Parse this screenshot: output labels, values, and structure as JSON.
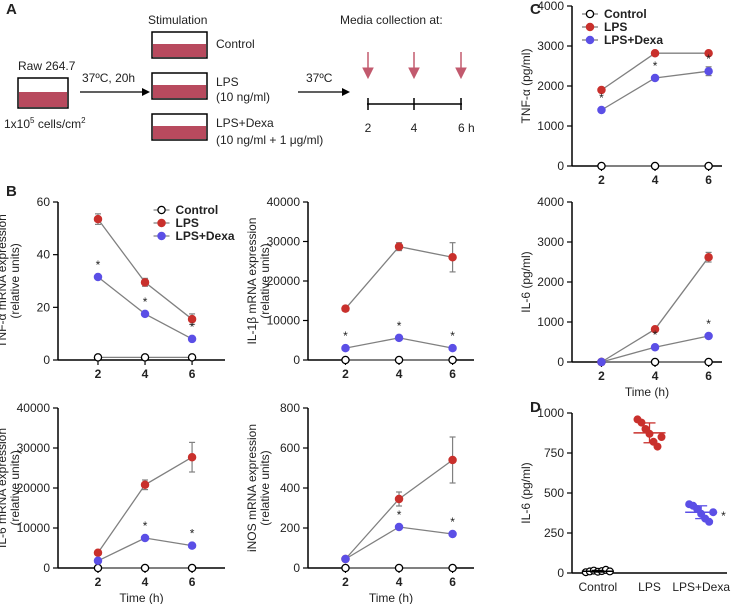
{
  "panel_labels": [
    "A",
    "B",
    "C",
    "D"
  ],
  "diagram": {
    "stimulation_title": "Stimulation",
    "cell_line": "Raw 264.7",
    "density": {
      "base": "1x10",
      "exp": "5",
      "unit": " cells/cm",
      "unit_exp": "2"
    },
    "incubation": "37ºC, 20h",
    "conditions": [
      {
        "name": "Control"
      },
      {
        "name": "LPS",
        "dose": "(10 ng/ml)"
      },
      {
        "name": "LPS+Dexa",
        "dose": "(10 ng/ml + 1 μg/ml)"
      }
    ],
    "second_incubation": "37ºC",
    "collection_title": "Media collection at:",
    "timepoints": [
      "2",
      "4",
      "6 h"
    ]
  },
  "chart_data": [
    {
      "type": "line",
      "ylabel": [
        "TNF-α mRNA expression",
        "(relative units)"
      ],
      "x": [
        2,
        4,
        6
      ],
      "xlim": [
        0.3,
        7.4
      ],
      "xticks": [
        2,
        4,
        6
      ],
      "ylim": [
        0,
        60
      ],
      "yticks": [
        0,
        20,
        40,
        60
      ],
      "legend": "upper right",
      "series": [
        {
          "name": "Control",
          "color": "#ffffff",
          "edgecolor": "#000000",
          "values": [
            1,
            1,
            1
          ]
        },
        {
          "name": "LPS",
          "color": "#c9302c",
          "values": [
            53.5,
            29.5,
            15.5
          ],
          "errors": [
            2,
            1.5,
            2
          ]
        },
        {
          "name": "LPS+Dexa",
          "color": "#5b4fe6",
          "values": [
            31.5,
            17.5,
            8
          ],
          "errors": [
            0.5,
            0.5,
            0.5
          ],
          "significance": [
            "*",
            "*",
            "*"
          ]
        }
      ]
    },
    {
      "type": "line",
      "ylabel": [
        "IL-1β mRNA expression",
        "(relative units)"
      ],
      "x": [
        2,
        4,
        6
      ],
      "xlim": [
        0.6,
        6.8
      ],
      "xticks": [
        2,
        4,
        6
      ],
      "ylim": [
        0,
        40000
      ],
      "yticks": [
        0,
        10000,
        20000,
        30000,
        40000
      ],
      "series": [
        {
          "color": "#ffffff",
          "edgecolor": "#000000",
          "values": [
            0,
            0,
            0
          ]
        },
        {
          "color": "#c9302c",
          "values": [
            13000,
            28700,
            26000
          ],
          "errors": [
            700,
            1000,
            3700
          ]
        },
        {
          "color": "#5b4fe6",
          "values": [
            3000,
            5600,
            3000
          ],
          "errors": [
            200,
            300,
            200
          ],
          "significance": [
            "*",
            "*",
            "*"
          ]
        }
      ]
    },
    {
      "type": "line",
      "ylabel": [
        "IL-6 mRNA expression",
        "(relative units)"
      ],
      "xlabel": "Time (h)",
      "x": [
        2,
        4,
        6
      ],
      "xlim": [
        0.3,
        7.4
      ],
      "xticks": [
        2,
        4,
        6
      ],
      "ylim": [
        0,
        40000
      ],
      "yticks": [
        0,
        10000,
        20000,
        30000,
        40000
      ],
      "series": [
        {
          "color": "#ffffff",
          "edgecolor": "#000000",
          "values": [
            0,
            0,
            0
          ]
        },
        {
          "color": "#c9302c",
          "values": [
            3800,
            20800,
            27700
          ],
          "errors": [
            300,
            1200,
            3700
          ]
        },
        {
          "color": "#5b4fe6",
          "values": [
            1800,
            7500,
            5600
          ],
          "errors": [
            100,
            300,
            300
          ],
          "significance": [
            null,
            "*",
            "*"
          ]
        }
      ]
    },
    {
      "type": "line",
      "ylabel": [
        "iNOS mRNA expression",
        "(relative units)"
      ],
      "xlabel": "Time (h)",
      "x": [
        2,
        4,
        6
      ],
      "xlim": [
        0.6,
        6.8
      ],
      "xticks": [
        2,
        4,
        6
      ],
      "ylim": [
        0,
        800
      ],
      "yticks": [
        0,
        200,
        400,
        600,
        800
      ],
      "series": [
        {
          "color": "#ffffff",
          "edgecolor": "#000000",
          "values": [
            0,
            0,
            0
          ]
        },
        {
          "color": "#c9302c",
          "values": [
            45,
            345,
            540
          ],
          "errors": [
            5,
            35,
            115
          ]
        },
        {
          "color": "#5b4fe6",
          "values": [
            45,
            205,
            170
          ],
          "errors": [
            5,
            8,
            8
          ],
          "significance": [
            null,
            "*",
            "*"
          ]
        }
      ]
    },
    {
      "type": "line",
      "ylabel": [
        "TNF-α (pg/ml)"
      ],
      "x": [
        2,
        4,
        6
      ],
      "xlim": [
        0.9,
        6.5
      ],
      "xticks": [
        2,
        4,
        6
      ],
      "ylim": [
        0,
        4000
      ],
      "yticks": [
        0,
        1000,
        2000,
        3000,
        4000
      ],
      "legend": "upper left",
      "series": [
        {
          "name": "Control",
          "color": "#ffffff",
          "edgecolor": "#000000",
          "values": [
            0,
            0,
            0
          ]
        },
        {
          "name": "LPS",
          "color": "#c9302c",
          "values": [
            1900,
            2820,
            2820
          ],
          "errors": [
            30,
            30,
            30
          ]
        },
        {
          "name": "LPS+Dexa",
          "color": "#5b4fe6",
          "values": [
            1400,
            2200,
            2370
          ],
          "errors": [
            40,
            60,
            110
          ],
          "significance": [
            "*",
            "*",
            "*"
          ]
        }
      ]
    },
    {
      "type": "line",
      "ylabel": [
        "IL-6 (pg/ml)"
      ],
      "xlabel": "Time (h)",
      "x": [
        2,
        4,
        6
      ],
      "xlim": [
        0.9,
        6.5
      ],
      "xticks": [
        2,
        4,
        6
      ],
      "ylim": [
        0,
        4000
      ],
      "yticks": [
        0,
        1000,
        2000,
        3000,
        4000
      ],
      "series": [
        {
          "color": "#ffffff",
          "edgecolor": "#000000",
          "values": [
            0,
            0,
            0
          ]
        },
        {
          "color": "#c9302c",
          "values": [
            0,
            820,
            2620
          ],
          "errors": [
            0,
            20,
            120
          ]
        },
        {
          "color": "#5b4fe6",
          "values": [
            0,
            370,
            650
          ],
          "errors": [
            0,
            20,
            30
          ],
          "significance": [
            null,
            "*",
            "*"
          ]
        }
      ]
    },
    {
      "type": "dot",
      "ylabel": [
        "IL-6 (pg/ml)"
      ],
      "categories": [
        "Control",
        "LPS",
        "LPS+Dexa"
      ],
      "ylim": [
        0,
        1000
      ],
      "yticks": [
        0,
        250,
        500,
        750,
        1000
      ],
      "colors": [
        "#ffffff",
        "#c9302c",
        "#5b4fe6"
      ],
      "edgecolors": [
        "#000000",
        "#c9302c",
        "#5b4fe6"
      ],
      "points": [
        [
          5,
          10,
          15,
          8,
          12,
          20,
          10
        ],
        [
          960,
          940,
          900,
          870,
          820,
          790,
          850
        ],
        [
          430,
          420,
          400,
          370,
          340,
          320,
          380
        ]
      ],
      "means": [
        11,
        876,
        380
      ],
      "sd": [
        5,
        62,
        40
      ],
      "significance": [
        null,
        null,
        "*"
      ]
    }
  ]
}
